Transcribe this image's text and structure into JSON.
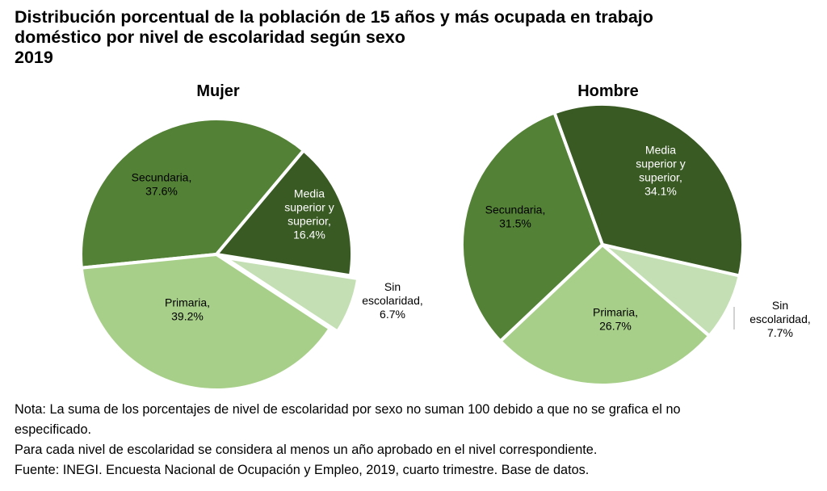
{
  "title": {
    "line1": "Distribución porcentual de la población de 15 años y más ocupada en trabajo",
    "line2": "doméstico por nivel de escolaridad según sexo",
    "line3": "2019"
  },
  "chart_data": [
    {
      "type": "pie",
      "title": "Mujer",
      "unit": "%",
      "categories": [
        "Media superior y superior",
        "Sin escolaridad",
        "Primaria",
        "Secundaria"
      ],
      "values": [
        16.4,
        6.7,
        39.2,
        37.6
      ],
      "labels": [
        [
          "Media",
          "superior y",
          "superior,",
          "16.4%"
        ],
        [
          "Sin",
          "escolaridad,",
          "6.7%"
        ],
        [
          "Primaria,",
          "39.2%"
        ],
        [
          "Secundaria,",
          "37.6%"
        ]
      ],
      "colors": [
        "#3a5a24",
        "#c4dfb3",
        "#a8cf8a",
        "#538135"
      ],
      "label_colors": [
        "#ffffff",
        "#000000",
        "#000000",
        "#000000"
      ],
      "exploded": [
        "Sin escolaridad"
      ],
      "start_angle_deg": 40
    },
    {
      "type": "pie",
      "title": "Hombre",
      "unit": "%",
      "categories": [
        "Media superior y superior",
        "Sin escolaridad",
        "Primaria",
        "Secundaria"
      ],
      "values": [
        34.1,
        7.7,
        26.7,
        31.5
      ],
      "labels": [
        [
          "Media",
          "superior y",
          "superior,",
          "34.1%"
        ],
        [
          "Sin",
          "escolaridad,",
          "7.7%"
        ],
        [
          "Primaria,",
          "26.7%"
        ],
        [
          "Secundaria,",
          "31.5%"
        ]
      ],
      "colors": [
        "#3a5a24",
        "#c4dfb3",
        "#a8cf8a",
        "#538135"
      ],
      "label_colors": [
        "#ffffff",
        "#000000",
        "#000000",
        "#000000"
      ],
      "exploded": [],
      "start_angle_deg": -20
    }
  ],
  "notes": {
    "line1": "Nota: La suma de los porcentajes de nivel de escolaridad por sexo no suman 100 debido a que no se grafica el no",
    "line2": "especificado.",
    "line3": "Para cada nivel de escolaridad se considera al menos un año aprobado en el nivel correspondiente.",
    "line4": "Fuente: INEGI. Encuesta Nacional de Ocupación y Empleo, 2019, cuarto trimestre. Base de datos."
  }
}
